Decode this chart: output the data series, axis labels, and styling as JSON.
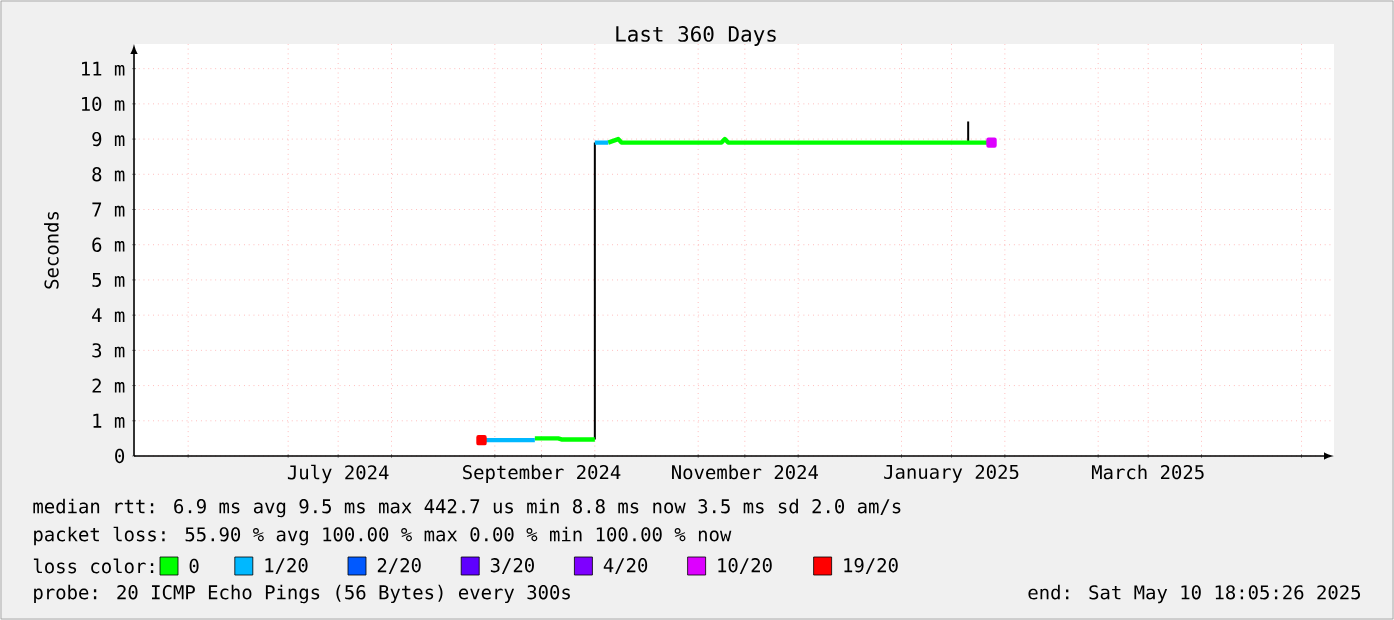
{
  "chart_data": {
    "type": "line",
    "title": "Last 360 Days",
    "ylabel": "Seconds",
    "legend_title": "loss color:",
    "legend": "bottom",
    "grid": true,
    "line_style": "solid",
    "xlim": [
      "2024-05-15T18:05",
      "2025-05-10T18:05"
    ],
    "xticks": [
      {
        "value": "2024-06-01",
        "label": null
      },
      {
        "value": "2024-07-01",
        "label": null
      },
      {
        "value": "2024-08-01",
        "label": null
      },
      {
        "value": "2024-09-01",
        "label": null
      },
      {
        "value": "2024-10-01",
        "label": null
      },
      {
        "value": "2024-11-01",
        "label": null
      },
      {
        "value": "2024-12-01",
        "label": null
      },
      {
        "value": "2025-01-01",
        "label": null
      },
      {
        "value": "2025-02-01",
        "label": null
      },
      {
        "value": "2025-03-01",
        "label": null
      },
      {
        "value": "2025-04-01",
        "label": null
      },
      {
        "value": "2025-05-01",
        "label": null
      },
      {
        "value": "2024-07-16",
        "label": "July 2024"
      },
      {
        "value": "2024-09-15",
        "label": "September 2024"
      },
      {
        "value": "2024-11-15",
        "label": "November 2024"
      },
      {
        "value": "2025-01-16",
        "label": "January 2025"
      },
      {
        "value": "2025-03-16",
        "label": "March 2025"
      }
    ],
    "ylim": [
      0,
      11.7
    ],
    "yticks": [
      0,
      {
        "value": 1,
        "label": "1 m"
      },
      {
        "value": 2,
        "label": "2 m"
      },
      {
        "value": 3,
        "label": "3 m"
      },
      {
        "value": 4,
        "label": "4 m"
      },
      {
        "value": 5,
        "label": "5 m"
      },
      {
        "value": 6,
        "label": "6 m"
      },
      {
        "value": 7,
        "label": "7 m"
      },
      {
        "value": 8,
        "label": "8 m"
      },
      {
        "value": 9,
        "label": "9 m"
      },
      {
        "value": 10,
        "label": "10 m"
      },
      {
        "value": 11,
        "label": "11 m"
      }
    ],
    "series": [
      {
        "color": "#000000",
        "x": [
          "2024-10-01",
          "2024-10-01"
        ],
        "values": [
          0.47,
          8.9
        ]
      },
      {
        "color": "#000000",
        "x": [
          "2025-01-21",
          "2025-01-21"
        ],
        "values": [
          8.9,
          9.5
        ]
      },
      {
        "name": "0",
        "color": "#00ff00",
        "x": [
          "2024-09-13",
          "2024-09-20",
          "2024-09-21",
          "2024-10-01",
          "2024-10-03",
          "2024-10-05",
          "2024-10-08",
          "2024-10-09",
          "2024-11-08",
          "2024-11-09",
          "2024-11-10",
          "2025-01-28"
        ],
        "values": [
          0.5,
          0.5,
          0.47,
          0.47,
          null,
          8.9,
          9.0,
          8.9,
          8.9,
          9.0,
          8.9,
          8.9
        ]
      },
      {
        "name": "1/20",
        "color": "#00b8ff",
        "x": [
          "2024-08-28",
          "2024-09-13",
          "2024-09-20",
          "2024-10-01",
          "2024-10-05"
        ],
        "values": [
          0.45,
          0.45,
          null,
          8.9,
          8.9
        ]
      },
      {
        "name": "2/20",
        "color": "#0059ff"
      },
      {
        "name": "3/20",
        "color": "#5e00ff"
      },
      {
        "name": "4/20",
        "color": "#7e00ff"
      },
      {
        "name": "10/20",
        "color": "#dd00ff",
        "marker": "square",
        "x": [
          "2025-01-28"
        ],
        "values": [
          8.9
        ]
      },
      {
        "name": "19/20",
        "color": "#ff0000",
        "marker": "square",
        "x": [
          "2024-08-28"
        ],
        "values": [
          0.45
        ]
      }
    ],
    "annotations": [
      "median rtt:  6.9 ms avg  9.5 ms max  442.7 us min  8.8 ms now  3.5 ms sd  2.0   am/s",
      "packet loss: 55.90 % avg  100.00 % max  0.00 % min  100.00 % now",
      "probe:       20 ICMP Echo Pings (56 Bytes) every 300s",
      "end: Sat May 10 18:05:26 2025"
    ]
  }
}
